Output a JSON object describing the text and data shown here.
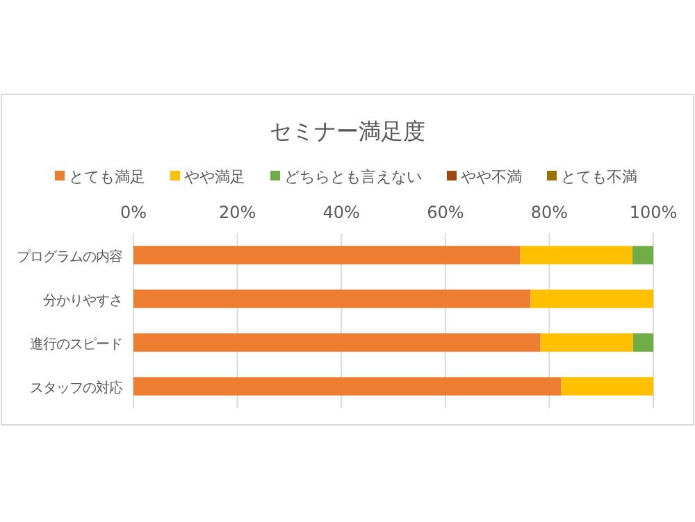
{
  "chart_data": {
    "type": "bar",
    "title": "セミナー満足度",
    "orientation": "horizontal",
    "stacked": true,
    "categories": [
      "プログラムの内容",
      "分かりやすさ",
      "進行のスピード",
      "スタッフの対応"
    ],
    "series": [
      {
        "name": "とても満足",
        "color": "#ed7d31",
        "values": [
          74.4,
          76.4,
          78.3,
          82.3
        ]
      },
      {
        "name": "やや満足",
        "color": "#ffc000",
        "values": [
          21.6,
          23.6,
          17.8,
          17.7
        ]
      },
      {
        "name": "どちらとも言えない",
        "color": "#70ad47",
        "values": [
          4.0,
          0,
          3.9,
          0
        ]
      },
      {
        "name": "やや不満",
        "color": "#9e480e",
        "values": [
          0,
          0,
          0,
          0
        ]
      },
      {
        "name": "とても不満",
        "color": "#997300",
        "values": [
          0,
          0,
          0,
          0
        ]
      }
    ],
    "xlim": [
      0,
      100
    ],
    "xticks": [
      {
        "value": 0,
        "label": "0%"
      },
      {
        "value": 20,
        "label": "20%"
      },
      {
        "value": 40,
        "label": "40%"
      },
      {
        "value": 60,
        "label": "60%"
      },
      {
        "value": 80,
        "label": "80%"
      },
      {
        "value": 100,
        "label": "100%"
      }
    ],
    "grid": "x",
    "legend": "top"
  }
}
